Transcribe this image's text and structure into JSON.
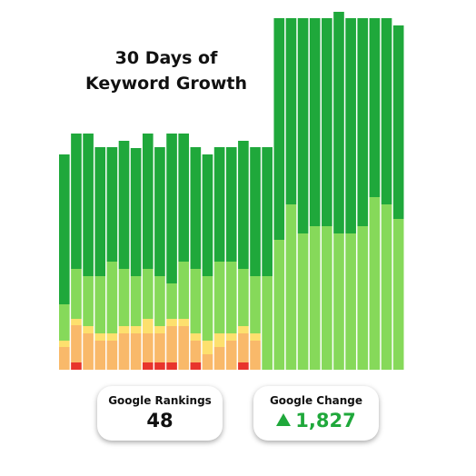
{
  "chart_data": {
    "type": "stacked_bar",
    "title": "30 Days of Keyword Growth",
    "categories": [
      null,
      null,
      null,
      null,
      null,
      null,
      null,
      null,
      null,
      null,
      null,
      null,
      null,
      null,
      null,
      null,
      null,
      null,
      null,
      null,
      null,
      null,
      null,
      null,
      null,
      null,
      null,
      null,
      null
    ],
    "series": [
      {
        "color": "#e8342c",
        "values": [
          0,
          8,
          0,
          0,
          0,
          0,
          0,
          8,
          8,
          8,
          0,
          8,
          0,
          0,
          0,
          8,
          0,
          0,
          0,
          0,
          0,
          0,
          0,
          0,
          0,
          0,
          0,
          0,
          0
        ]
      },
      {
        "color": "#f9b96a",
        "values": [
          25,
          41,
          40,
          32,
          32,
          40,
          40,
          32,
          32,
          40,
          48,
          24,
          17,
          25,
          32,
          32,
          32,
          0,
          0,
          0,
          0,
          0,
          0,
          0,
          0,
          0,
          0,
          0,
          0
        ]
      },
      {
        "color": "#fde06e",
        "values": [
          7,
          7,
          8,
          8,
          8,
          8,
          8,
          16,
          8,
          8,
          8,
          8,
          15,
          15,
          8,
          8,
          8,
          0,
          0,
          0,
          0,
          0,
          0,
          0,
          0,
          0,
          0,
          0,
          0
        ]
      },
      {
        "color": "#86d95a",
        "values": [
          40,
          55,
          55,
          63,
          79,
          63,
          55,
          55,
          55,
          39,
          63,
          71,
          71,
          79,
          79,
          63,
          63,
          103,
          143,
          182,
          150,
          158,
          158,
          150,
          150,
          158,
          190,
          182,
          166
        ]
      },
      {
        "color": "#1fa83b",
        "values": [
          165,
          149,
          157,
          142,
          126,
          141,
          141,
          149,
          142,
          165,
          141,
          134,
          134,
          126,
          126,
          141,
          142,
          142,
          244,
          205,
          237,
          229,
          229,
          244,
          237,
          229,
          197,
          205,
          213
        ]
      }
    ]
  },
  "cards": [
    {
      "label": "Google Rankings",
      "value": "48"
    },
    {
      "label": "Google Change",
      "value": "1,827"
    }
  ]
}
